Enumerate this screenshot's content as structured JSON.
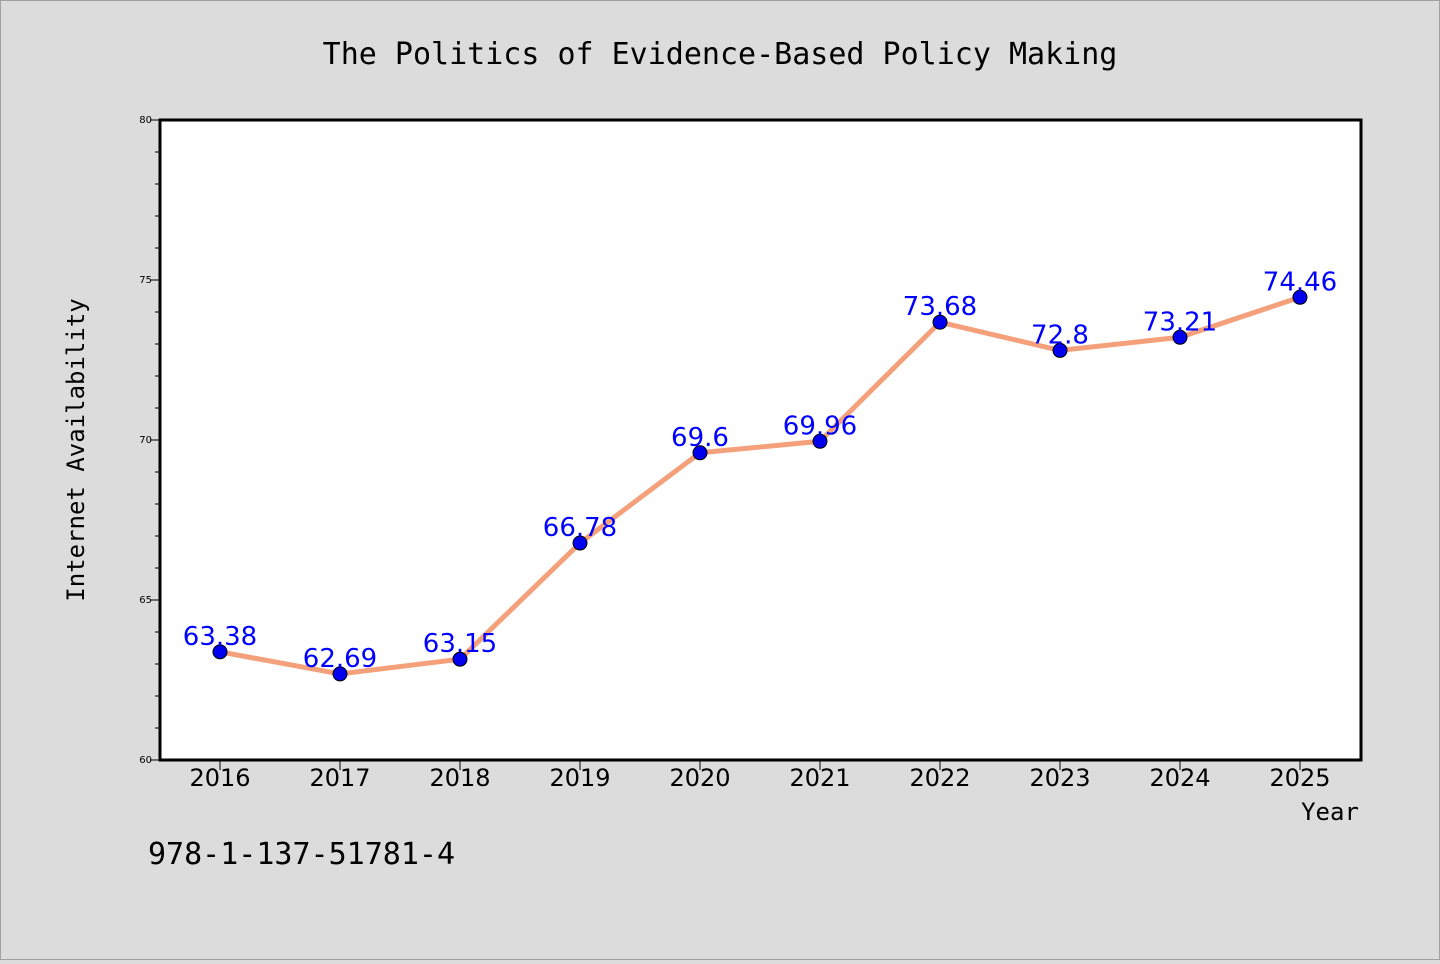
{
  "colors": {
    "background": "#dcdcdc",
    "plot_background": "#ffffff",
    "line": "#f4a07a",
    "marker": "#0000ee",
    "data_label": "#0000ff"
  },
  "isbn_text": "978-1-137-51781-4",
  "chart_data": {
    "type": "line",
    "title": "The Politics of Evidence-Based Policy Making",
    "xlabel": "Year",
    "ylabel": "Internet Availability",
    "categories": [
      "2016",
      "2017",
      "2018",
      "2019",
      "2020",
      "2021",
      "2022",
      "2023",
      "2024",
      "2025"
    ],
    "series": [
      {
        "values": [
          63.38,
          62.69,
          63.15,
          66.78,
          69.6,
          69.96,
          73.68,
          72.8,
          73.21,
          74.46
        ],
        "labels": [
          "63.38",
          "62.69",
          "63.15",
          "66.78",
          "69.6",
          "69.96",
          "73.68",
          "72.8",
          "73.21",
          "74.46"
        ]
      }
    ],
    "ylim": [
      60,
      80
    ],
    "yticks": [
      "60",
      "65",
      "70",
      "75",
      "80"
    ],
    "grid": false,
    "legend": "none",
    "markers": true
  }
}
